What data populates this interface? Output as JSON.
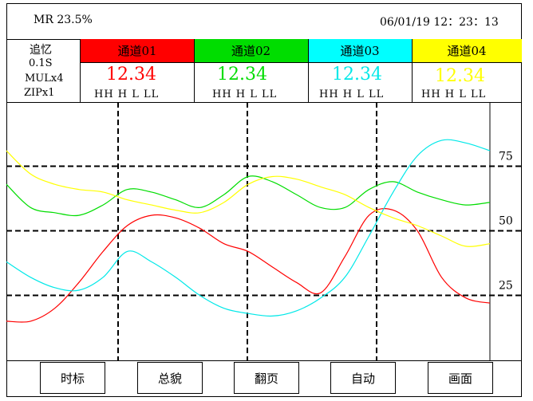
{
  "status": {
    "mr_text": "MR 23.5%",
    "datetime": "06/01/19  12：23：13"
  },
  "sidebar": {
    "line1": "追忆",
    "line2": "0.1S",
    "line3": "MULx4",
    "line4": "ZIPx1"
  },
  "channels": [
    {
      "label": "通道01",
      "value": "12.34",
      "alarms": "HH  H  L  LL",
      "header_color": "#ff0000",
      "value_color": "#ff0000"
    },
    {
      "label": "通道02",
      "value": "12.34",
      "alarms": "HH  H  L  LL",
      "header_color": "#00dd00",
      "value_color": "#00dd00"
    },
    {
      "label": "通道03",
      "value": "12.34",
      "alarms": "HH  H  L  LL",
      "header_color": "#00ffff",
      "value_color": "#00e8e8"
    },
    {
      "label": "通道04",
      "value": "12.34",
      "alarms": "HH  H  L  LL",
      "header_color": "#ffff00",
      "value_color": "#ffff00"
    }
  ],
  "chart_data": {
    "type": "line",
    "ytick_labels": [
      "75",
      "50",
      "25"
    ],
    "ytick_values": [
      75,
      50,
      25
    ],
    "ylim": [
      0,
      100
    ],
    "xlim": [
      0,
      100
    ],
    "grid": true,
    "series": [
      {
        "color": "#ff0000",
        "x": [
          0,
          5,
          10,
          15,
          20,
          25,
          30,
          35,
          40,
          45,
          50,
          55,
          60,
          65,
          70,
          75,
          80,
          85,
          90,
          95,
          100
        ],
        "y": [
          15,
          15,
          20,
          30,
          42,
          52,
          56,
          55,
          51,
          45,
          42,
          36,
          30,
          26,
          40,
          56,
          58,
          50,
          32,
          24,
          22
        ]
      },
      {
        "color": "#00dd00",
        "x": [
          0,
          5,
          10,
          15,
          20,
          25,
          30,
          35,
          40,
          45,
          50,
          55,
          60,
          65,
          70,
          75,
          80,
          85,
          90,
          95,
          100
        ],
        "y": [
          68,
          59,
          57,
          56,
          60,
          66,
          65,
          62,
          59,
          64,
          71,
          69,
          64,
          59,
          59,
          66,
          69,
          65,
          62,
          60,
          61
        ]
      },
      {
        "color": "#00e8e8",
        "x": [
          0,
          5,
          10,
          15,
          20,
          25,
          30,
          35,
          40,
          45,
          50,
          55,
          60,
          65,
          70,
          75,
          80,
          85,
          90,
          95,
          100
        ],
        "y": [
          38,
          32,
          28,
          27,
          32,
          42,
          38,
          32,
          25,
          20,
          18,
          17,
          19,
          24,
          32,
          48,
          65,
          79,
          85,
          84,
          81
        ]
      },
      {
        "color": "#ffff00",
        "x": [
          0,
          5,
          10,
          15,
          20,
          25,
          30,
          35,
          40,
          45,
          50,
          55,
          60,
          65,
          70,
          75,
          80,
          85,
          90,
          95,
          100
        ],
        "y": [
          81,
          72,
          68,
          66,
          65,
          62,
          60,
          58,
          57,
          61,
          68,
          71,
          70,
          67,
          64,
          59,
          55,
          52,
          48,
          44,
          45
        ]
      }
    ]
  },
  "toolbar": {
    "btn1": "时标",
    "btn2": "总貌",
    "btn3": "翻页",
    "btn4": "自动",
    "btn5": "画面"
  }
}
